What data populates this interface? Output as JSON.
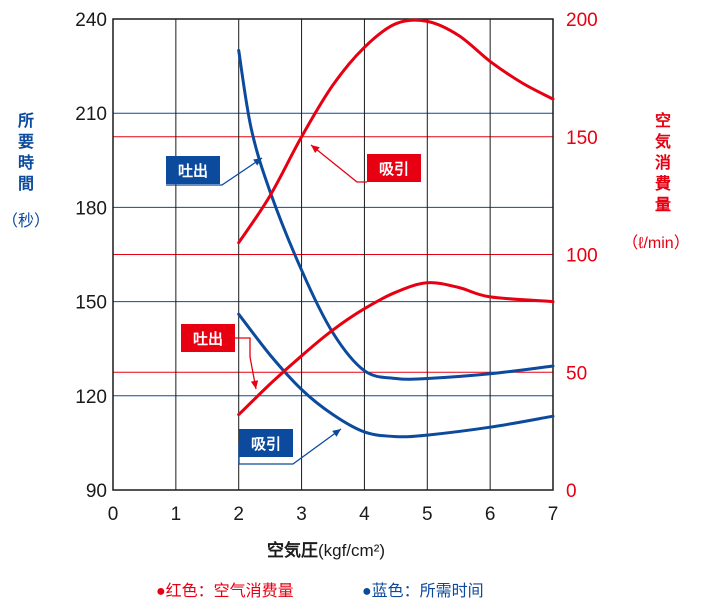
{
  "chart_data": {
    "type": "line",
    "x_ticks": [
      "0",
      "1",
      "2",
      "3",
      "4",
      "5",
      "6",
      "7"
    ],
    "left_axis": {
      "label_chars": [
        "所",
        "要",
        "時",
        "間"
      ],
      "unit": "（秒）",
      "ticks": [
        "90",
        "120",
        "150",
        "180",
        "210",
        "240"
      ],
      "range": [
        90,
        240
      ],
      "color": "#0b4a9c"
    },
    "right_axis": {
      "label_chars": [
        "空",
        "気",
        "消",
        "費",
        "量"
      ],
      "unit": "（ℓ/min）",
      "ticks": [
        "0",
        "50",
        "100",
        "150",
        "200"
      ],
      "range": [
        0,
        200
      ],
      "color": "#e60012"
    },
    "xlabel": "空気圧",
    "xlabel_unit": "(kgf/cm²)",
    "x_range": [
      0,
      7
    ],
    "series": [
      {
        "name": "吐出",
        "axis": "left",
        "color": "#0b4a9c",
        "points": [
          [
            2.0,
            230
          ],
          [
            2.2,
            205
          ],
          [
            2.5,
            185
          ],
          [
            3.0,
            160
          ],
          [
            3.5,
            140
          ],
          [
            4.0,
            128
          ],
          [
            4.5,
            125.5
          ],
          [
            5.0,
            125.5
          ],
          [
            6.0,
            127
          ],
          [
            7.0,
            129.5
          ]
        ]
      },
      {
        "name": "吸引",
        "axis": "left",
        "color": "#0b4a9c",
        "points": [
          [
            2.0,
            146
          ],
          [
            2.5,
            133
          ],
          [
            3.0,
            122
          ],
          [
            3.5,
            114
          ],
          [
            4.0,
            108.5
          ],
          [
            4.5,
            107
          ],
          [
            5.0,
            107.5
          ],
          [
            6.0,
            110
          ],
          [
            7.0,
            113.5
          ]
        ]
      },
      {
        "name": "吸引",
        "axis": "right",
        "color": "#e60012",
        "points": [
          [
            2.0,
            105
          ],
          [
            2.5,
            125
          ],
          [
            3.0,
            150
          ],
          [
            3.5,
            172
          ],
          [
            4.0,
            188
          ],
          [
            4.5,
            198
          ],
          [
            5.0,
            199
          ],
          [
            5.5,
            193
          ],
          [
            6.0,
            182
          ],
          [
            6.5,
            173
          ],
          [
            7.0,
            166
          ]
        ]
      },
      {
        "name": "吐出",
        "axis": "right",
        "color": "#e60012",
        "points": [
          [
            2.0,
            32
          ],
          [
            2.5,
            45
          ],
          [
            3.0,
            57
          ],
          [
            3.5,
            68
          ],
          [
            4.0,
            77
          ],
          [
            4.5,
            84
          ],
          [
            5.0,
            88
          ],
          [
            5.5,
            86
          ],
          [
            6.0,
            82
          ],
          [
            7.0,
            80
          ]
        ]
      }
    ],
    "annotations": [
      {
        "text": "吐出",
        "color": "#0b4a9c"
      },
      {
        "text": "吸引",
        "color": "#e60012"
      },
      {
        "text": "吐出",
        "color": "#e60012"
      },
      {
        "text": "吸引",
        "color": "#0b4a9c"
      }
    ],
    "legend": [
      {
        "text": "●红色：空气消费量",
        "color": "#e60012"
      },
      {
        "text": "●蓝色：所需时间",
        "color": "#0b4a9c"
      }
    ],
    "grid": true,
    "legend_placement": "bottom"
  }
}
